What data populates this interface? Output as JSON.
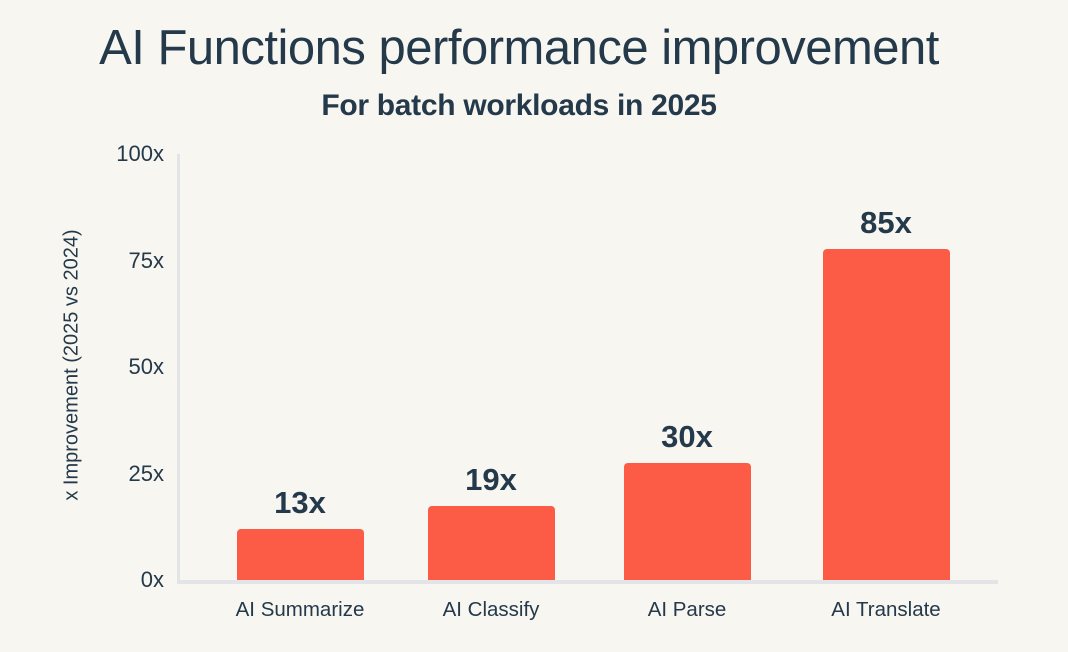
{
  "chart_data": {
    "type": "bar",
    "title": "AI Functions performance improvement",
    "subtitle": "For batch workloads in 2025",
    "categories": [
      "AI Summarize",
      "AI Classify",
      "AI Parse",
      "AI Translate"
    ],
    "values": [
      13,
      19,
      30,
      85
    ],
    "value_labels": [
      "13x",
      "19x",
      "30x",
      "85x"
    ],
    "xlabel": "",
    "ylabel": "x Improvement (2025 vs 2024)",
    "yticks": [
      0,
      25,
      50,
      75,
      100
    ],
    "ytick_labels": [
      "0x",
      "25x",
      "50x",
      "75x",
      "100x"
    ],
    "ylim": [
      0,
      100
    ],
    "grid": false,
    "legend": false,
    "colors": {
      "background": "#F8F6F1",
      "bar": "#FC5B45",
      "text": "#24394A",
      "axis_line": "#E2E4E8"
    }
  }
}
